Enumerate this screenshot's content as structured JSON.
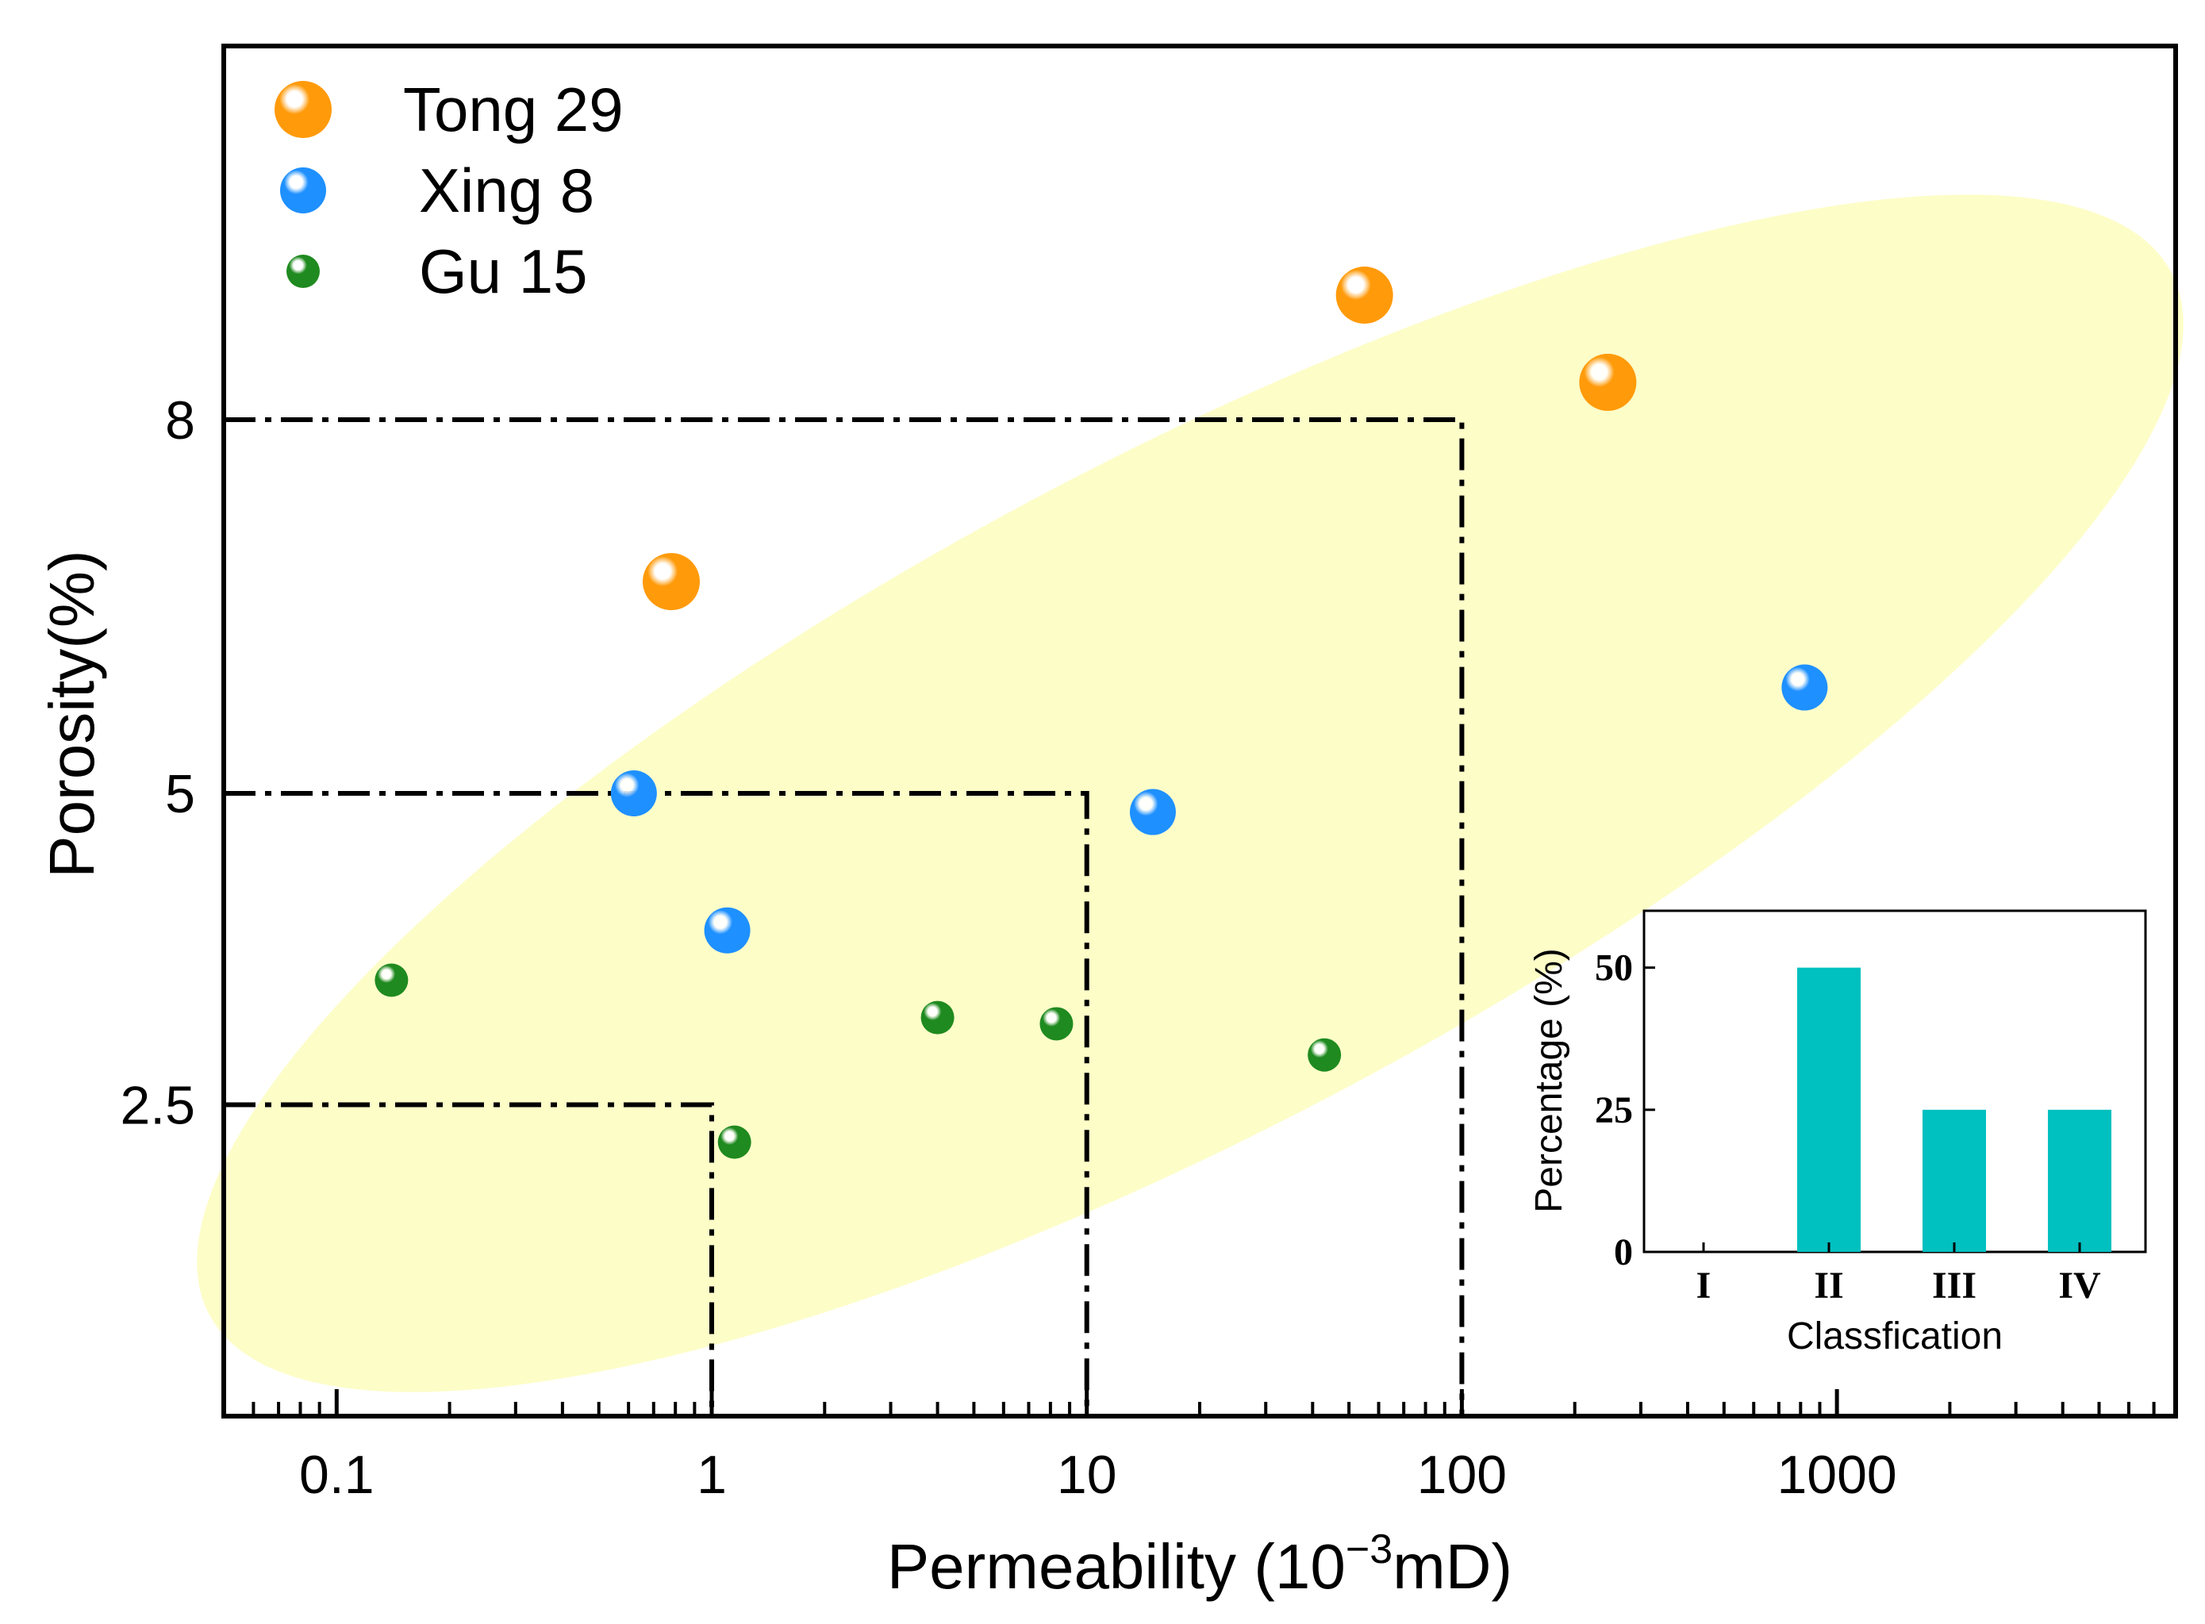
{
  "chart_data": {
    "type": "scatter",
    "xscale": "log",
    "xlabel": "Permeability (10",
    "xlabel_exp": "−3",
    "xlabel_unit": "mD)",
    "ylabel": "Porosity(%)",
    "xlim": [
      0.05,
      8000
    ],
    "ylim": [
      0,
      11
    ],
    "x_ticks": [
      0.1,
      1,
      10,
      100,
      1000
    ],
    "x_tick_labels": [
      "0.1",
      "1",
      "10",
      "100",
      "1000"
    ],
    "y_ticks": [
      2.5,
      5,
      8
    ],
    "y_tick_labels": [
      "2.5",
      "5",
      "8"
    ],
    "threshold_boxes": [
      {
        "x": 1,
        "y": 2.5
      },
      {
        "x": 10,
        "y": 5
      },
      {
        "x": 100,
        "y": 8
      }
    ],
    "legend_position": "top-left",
    "series": [
      {
        "name": "Tong 29",
        "color": "#ff9a0a",
        "marker": "large-sphere",
        "points": [
          {
            "x": 0.78,
            "y": 6.7
          },
          {
            "x": 55,
            "y": 9.0
          },
          {
            "x": 245,
            "y": 8.3
          }
        ]
      },
      {
        "name": "Xing 8",
        "color": "#1e90ff",
        "marker": "medium-sphere",
        "points": [
          {
            "x": 0.62,
            "y": 5.0
          },
          {
            "x": 1.1,
            "y": 3.9
          },
          {
            "x": 15,
            "y": 4.85
          },
          {
            "x": 820,
            "y": 5.85
          }
        ]
      },
      {
        "name": "Gu 15",
        "color": "#1f8a1f",
        "marker": "small-sphere",
        "points": [
          {
            "x": 0.14,
            "y": 3.5
          },
          {
            "x": 1.15,
            "y": 2.2
          },
          {
            "x": 4.0,
            "y": 3.2
          },
          {
            "x": 8.3,
            "y": 3.15
          },
          {
            "x": 43,
            "y": 2.9
          }
        ]
      }
    ],
    "inset": {
      "type": "bar",
      "categories": [
        "I",
        "II",
        "III",
        "IV"
      ],
      "values": [
        0,
        50,
        25,
        25
      ],
      "ylim": [
        0,
        60
      ],
      "y_ticks": [
        0,
        25,
        50
      ],
      "y_tick_labels": [
        "0",
        "25",
        "50"
      ],
      "xlabel": "Classfication",
      "ylabel": "Percentage (%)",
      "bar_color": "#00c0c0"
    },
    "region_color": "#fdfdc8"
  }
}
